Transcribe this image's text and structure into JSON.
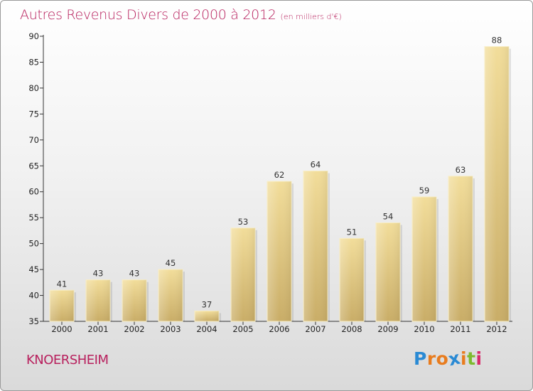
{
  "chart_data": {
    "type": "bar",
    "title": "Autres Revenus Divers de 2000 à 2012",
    "subtitle": "(en milliers d'€)",
    "categories": [
      "2000",
      "2001",
      "2002",
      "2003",
      "2004",
      "2005",
      "2006",
      "2007",
      "2008",
      "2009",
      "2010",
      "2011",
      "2012"
    ],
    "values": [
      41,
      43,
      43,
      45,
      37,
      53,
      62,
      64,
      51,
      54,
      59,
      63,
      88
    ],
    "data_labels": [
      "41",
      "43",
      "43",
      "45",
      "37",
      "53",
      "62",
      "64",
      "51",
      "54",
      "59",
      "63",
      "88"
    ],
    "ylim": [
      35,
      90
    ],
    "yticks": [
      35,
      40,
      45,
      50,
      55,
      60,
      65,
      70,
      75,
      80,
      85,
      90
    ],
    "xlabel": "",
    "ylabel": "",
    "grid": false,
    "bar_color_top": "#f2dd9a",
    "bar_color_bottom": "#c9ad67"
  },
  "place_name": "KNOERSHEIM",
  "logo": {
    "letters": [
      "P",
      "r",
      "o",
      "x",
      "i",
      "t",
      "i"
    ],
    "colors": [
      "#2a8ad4",
      "#e87c1e",
      "#e87c1e",
      "#2a8ad4",
      "#e87c1e",
      "#7dba2e",
      "#d82a6a"
    ]
  },
  "colors": {
    "title": "#b8215e",
    "axis": "#333333"
  }
}
